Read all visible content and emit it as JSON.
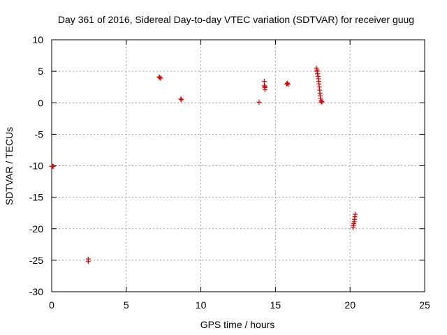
{
  "chart_data": {
    "type": "scatter",
    "title": "Day 361 of 2016, Sidereal Day-to-day VTEC variation (SDTVAR) for receiver guug",
    "xlabel": "GPS time / hours",
    "ylabel": "SDTVAR / TECUs",
    "xlim": [
      0,
      25
    ],
    "ylim": [
      -30,
      10
    ],
    "xticks": [
      0,
      5,
      10,
      15,
      20,
      25
    ],
    "yticks": [
      -30,
      -25,
      -20,
      -15,
      -10,
      -5,
      0,
      5,
      10
    ],
    "xtick_labels": [
      "0",
      "5",
      "10",
      "15",
      "20",
      "25"
    ],
    "ytick_labels": [
      "-30",
      "-25",
      "-20",
      "-15",
      "-10",
      "-5",
      "0",
      "5",
      "10"
    ],
    "grid": true,
    "marker": "plus",
    "colors": {
      "points": "#e00000",
      "grid": "#a0a0a0",
      "axes": "#000000"
    },
    "points": [
      {
        "x": 0.0,
        "y": -10.1
      },
      {
        "x": 0.05,
        "y": -10.1
      },
      {
        "x": 0.1,
        "y": -10.1
      },
      {
        "x": 2.45,
        "y": -24.8
      },
      {
        "x": 2.45,
        "y": -25.2
      },
      {
        "x": 7.2,
        "y": 4.1
      },
      {
        "x": 7.25,
        "y": 4.0
      },
      {
        "x": 7.3,
        "y": 3.9
      },
      {
        "x": 8.65,
        "y": 0.6
      },
      {
        "x": 8.7,
        "y": 0.5
      },
      {
        "x": 13.9,
        "y": 0.1
      },
      {
        "x": 14.25,
        "y": 3.4
      },
      {
        "x": 14.25,
        "y": 2.7
      },
      {
        "x": 14.28,
        "y": 2.4
      },
      {
        "x": 14.3,
        "y": 2.1
      },
      {
        "x": 14.3,
        "y": 2.6
      },
      {
        "x": 15.75,
        "y": 3.0
      },
      {
        "x": 15.8,
        "y": 3.1
      },
      {
        "x": 15.85,
        "y": 2.9
      },
      {
        "x": 17.75,
        "y": 5.5
      },
      {
        "x": 17.78,
        "y": 5.2
      },
      {
        "x": 17.8,
        "y": 5.0
      },
      {
        "x": 17.82,
        "y": 4.6
      },
      {
        "x": 17.85,
        "y": 4.2
      },
      {
        "x": 17.88,
        "y": 3.8
      },
      {
        "x": 17.9,
        "y": 3.4
      },
      {
        "x": 17.92,
        "y": 3.0
      },
      {
        "x": 17.94,
        "y": 2.5
      },
      {
        "x": 17.96,
        "y": 2.0
      },
      {
        "x": 17.98,
        "y": 1.5
      },
      {
        "x": 18.0,
        "y": 1.1
      },
      {
        "x": 18.02,
        "y": 0.7
      },
      {
        "x": 18.05,
        "y": 0.3
      },
      {
        "x": 18.08,
        "y": 0.1
      },
      {
        "x": 18.12,
        "y": 0.2
      },
      {
        "x": 20.2,
        "y": -19.8
      },
      {
        "x": 20.22,
        "y": -19.5
      },
      {
        "x": 20.25,
        "y": -19.2
      },
      {
        "x": 20.28,
        "y": -18.9
      },
      {
        "x": 20.3,
        "y": -18.5
      },
      {
        "x": 20.32,
        "y": -18.1
      },
      {
        "x": 20.34,
        "y": -17.7
      }
    ]
  }
}
